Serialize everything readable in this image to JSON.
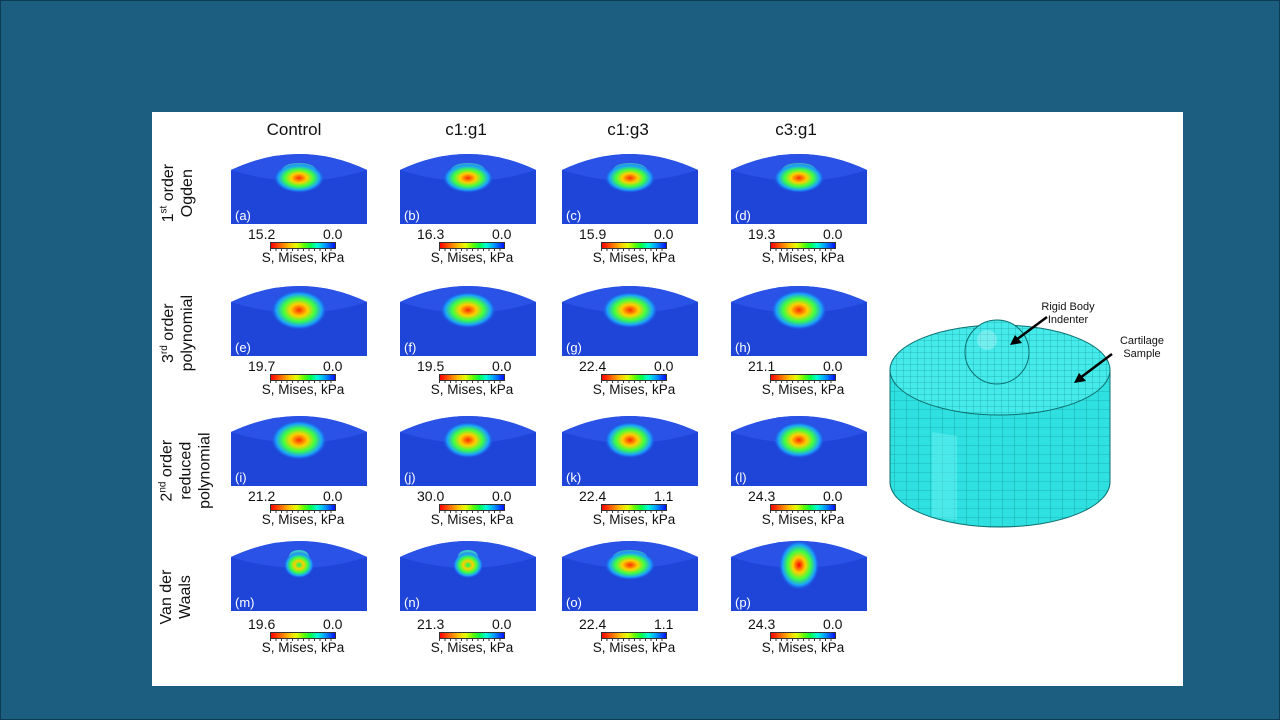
{
  "columns": [
    "Control",
    "c1:g1",
    "c1:g3",
    "c3:g1"
  ],
  "rows": [
    {
      "lines": [
        "1st order",
        "Ogden"
      ]
    },
    {
      "lines": [
        "3rd order",
        "polynomial"
      ]
    },
    {
      "lines": [
        "2nd order",
        "reduced",
        "polynomial"
      ]
    },
    {
      "lines": [
        "Van der",
        "Waals"
      ]
    }
  ],
  "scale_label": "S, Mises, kPa",
  "panels": [
    {
      "label": "(a)",
      "max": "15.2",
      "min": "0.0"
    },
    {
      "label": "(b)",
      "max": "16.3",
      "min": "0.0"
    },
    {
      "label": "(c)",
      "max": "15.9",
      "min": "0.0"
    },
    {
      "label": "(d)",
      "max": "19.3",
      "min": "0.0"
    },
    {
      "label": "(e)",
      "max": "19.7",
      "min": "0.0"
    },
    {
      "label": "(f)",
      "max": "19.5",
      "min": "0.0"
    },
    {
      "label": "(g)",
      "max": "22.4",
      "min": "0.0"
    },
    {
      "label": "(h)",
      "max": "21.1",
      "min": "0.0"
    },
    {
      "label": "(i)",
      "max": "21.2",
      "min": "0.0"
    },
    {
      "label": "(j)",
      "max": "30.0",
      "min": "0.0"
    },
    {
      "label": "(k)",
      "max": "22.4",
      "min": "1.1"
    },
    {
      "label": "(l)",
      "max": "24.3",
      "min": "0.0"
    },
    {
      "label": "(m)",
      "max": "19.6",
      "min": "0.0"
    },
    {
      "label": "(n)",
      "max": "21.3",
      "min": "0.0"
    },
    {
      "label": "(o)",
      "max": "22.4",
      "min": "1.1"
    },
    {
      "label": "(p)",
      "max": "24.3",
      "min": "0.0"
    }
  ],
  "model": {
    "indenter_label": [
      "Rigid Body",
      "Indenter"
    ],
    "sample_label": [
      "Cartilage",
      "Sample"
    ]
  },
  "colors": {
    "slide_bg": "#1b5e80",
    "mesh": "#33e6e6",
    "contour_base": "#1c3fd0"
  }
}
